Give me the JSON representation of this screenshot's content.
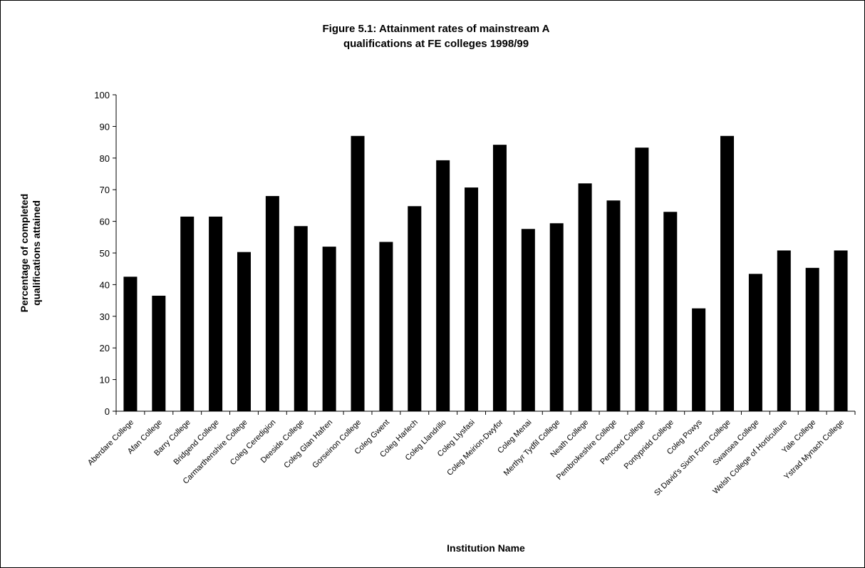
{
  "chart_data": {
    "type": "bar",
    "title_lines": [
      "Figure 5.1: Attainment rates of mainstream A",
      "qualifications at FE colleges  1998/99"
    ],
    "xlabel": "Institution Name",
    "ylabel_lines": [
      "Percentage of completed",
      "qualifications attained"
    ],
    "ylim": [
      0,
      100
    ],
    "yticks": [
      0,
      10,
      20,
      30,
      40,
      50,
      60,
      70,
      80,
      90,
      100
    ],
    "grid": false,
    "legend": "none",
    "bar_color": "#000000",
    "categories": [
      "Aberdare College",
      "Afan College",
      "Barry College",
      "Bridgend College",
      "Carmarthenshire College",
      "Coleg Ceredigion",
      "Deeside College",
      "Coleg Glan Hafren",
      "Gorseinon College",
      "Coleg Gwent",
      "Coleg Harlech",
      "Coleg Llandrillo",
      "Coleg Llysfasi",
      "Coleg Meirion-Dwyfor",
      "Coleg Menai",
      "Merthyr Tydfil College",
      "Neath College",
      "Pembrokeshire College",
      "Pencoed College",
      "Pontypridd College",
      "Coleg Powys",
      "St David's Sixth Form College",
      "Swansea College",
      "Welsh College of Horticulture",
      "Yale College",
      "Ystrad Mynach College"
    ],
    "values": [
      42.5,
      36.5,
      61.5,
      61.5,
      50.3,
      68.0,
      58.5,
      52.0,
      87.0,
      53.5,
      64.8,
      79.3,
      70.7,
      84.2,
      57.6,
      59.4,
      72.0,
      66.6,
      83.3,
      63.0,
      32.5,
      87.0,
      43.4,
      50.8,
      45.3,
      50.8
    ]
  }
}
